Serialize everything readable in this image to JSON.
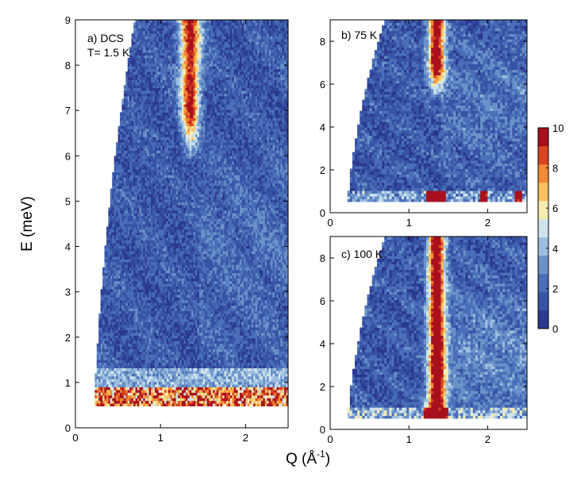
{
  "figure": {
    "xlabel": "Q (Å",
    "xlabel_sup": "-1",
    "xlabel_end": ")",
    "ylabel": "E (meV)"
  },
  "colorbar": {
    "ticks": [
      "0",
      "2",
      "4",
      "6",
      "8",
      "10"
    ],
    "colors": [
      "#2b3990",
      "#3753a5",
      "#4a6fb8",
      "#6a92c9",
      "#9bbede",
      "#cfe3ec",
      "#f5ecb0",
      "#f9c25e",
      "#f08a34",
      "#d94423",
      "#a8101e"
    ]
  },
  "chart_data": [
    {
      "type": "heatmap",
      "panel_label_1": "a) DCS",
      "panel_label_2": "T= 1.5 K",
      "xlim": [
        0,
        2.5
      ],
      "ylim": [
        0,
        9
      ],
      "xticks": [
        "0",
        "1",
        "2"
      ],
      "yticks": [
        "0",
        "1",
        "2",
        "3",
        "4",
        "5",
        "6",
        "7",
        "8",
        "9"
      ],
      "clim": [
        0,
        10
      ],
      "features": {
        "low_energy_cutoff_meV": 0.5,
        "elastic_band_meV": [
          0.5,
          0.85
        ],
        "mode_Q": 1.35,
        "mode_E_range_meV": [
          5.8,
          9
        ]
      }
    },
    {
      "type": "heatmap",
      "panel_label": "b) 75 K",
      "xlim": [
        0,
        2.5
      ],
      "ylim": [
        0,
        9
      ],
      "xticks": [
        "0",
        "1",
        "2"
      ],
      "yticks": [
        "0",
        "2",
        "4",
        "6",
        "8"
      ],
      "clim": [
        0,
        10
      ],
      "features": {
        "low_energy_cutoff_meV": 0.5,
        "mode_Q": 1.35,
        "mode_E_range_meV": [
          5.5,
          9
        ]
      }
    },
    {
      "type": "heatmap",
      "panel_label": "c) 100 K",
      "xlim": [
        0,
        2.5
      ],
      "ylim": [
        0,
        9
      ],
      "xticks": [
        "0",
        "1",
        "2"
      ],
      "yticks": [
        "0",
        "2",
        "4",
        "6",
        "8"
      ],
      "clim": [
        0,
        10
      ],
      "features": {
        "low_energy_cutoff_meV": 0.5,
        "mode_Q": 1.35,
        "mode_E_range_meV": [
          0.5,
          9
        ]
      }
    }
  ]
}
